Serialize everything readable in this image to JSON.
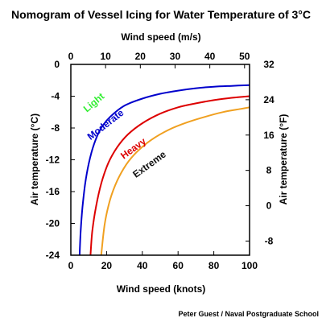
{
  "chart_data": {
    "type": "line",
    "title": "Nomogram of Vessel Icing for Water Temperature of 3°C",
    "credit": "Peter Guest / Naval Postgraduate School",
    "x_bottom": {
      "label": "Wind speed (knots)",
      "range": [
        0,
        100
      ],
      "ticks": [
        0,
        20,
        40,
        60,
        80,
        100
      ]
    },
    "x_top": {
      "label": "Wind speed (m/s)",
      "range": [
        0,
        51.44
      ],
      "ticks": [
        0,
        10,
        20,
        30,
        40,
        50
      ]
    },
    "y_left": {
      "label": "Air temperature (°C)",
      "range": [
        -24,
        0
      ],
      "ticks": [
        0,
        -4,
        -8,
        -12,
        -16,
        -20,
        -24
      ]
    },
    "y_right": {
      "label": "Air temperature (°F)",
      "range": [
        -11.2,
        32
      ],
      "ticks": [
        32,
        24,
        16,
        8,
        0,
        -8
      ]
    },
    "series": [
      {
        "color": "#0000cc",
        "x": [
          4.9,
          5.5,
          6.5,
          8,
          10,
          13,
          17,
          22,
          30,
          40,
          50,
          60,
          70,
          80,
          90,
          100
        ],
        "y": [
          -24,
          -21,
          -18,
          -15,
          -12.5,
          -10,
          -8,
          -6.6,
          -5.2,
          -4.3,
          -3.7,
          -3.3,
          -3.0,
          -2.8,
          -2.7,
          -2.6
        ]
      },
      {
        "color": "#dd0000",
        "x": [
          11,
          12,
          14,
          17,
          21,
          26,
          32,
          40,
          50,
          60,
          70,
          80,
          90,
          100
        ],
        "y": [
          -24,
          -21,
          -18,
          -15,
          -12.4,
          -10.4,
          -8.8,
          -7.4,
          -6.2,
          -5.4,
          -4.9,
          -4.5,
          -4.2,
          -4.0
        ]
      },
      {
        "color": "#f0a020",
        "x": [
          17,
          19,
          22,
          26,
          31,
          37,
          45,
          55,
          65,
          75,
          85,
          95,
          100
        ],
        "y": [
          -24,
          -20,
          -17,
          -14.6,
          -12.6,
          -11,
          -9.5,
          -8.2,
          -7.3,
          -6.6,
          -6.0,
          -5.6,
          -5.4
        ]
      }
    ],
    "annotations": [
      {
        "text": "Light",
        "color": "#33ee33",
        "x": 14,
        "y": -5.1,
        "angle": -40
      },
      {
        "text": "Moderate",
        "color": "#0000cc",
        "x": 20.5,
        "y": -7.9,
        "angle": -38
      },
      {
        "text": "Heavy",
        "color": "#dd0000",
        "x": 36,
        "y": -10.9,
        "angle": -36
      },
      {
        "text": "Extreme",
        "color": "#111111",
        "x": 45,
        "y": -12.9,
        "angle": -36
      }
    ]
  }
}
